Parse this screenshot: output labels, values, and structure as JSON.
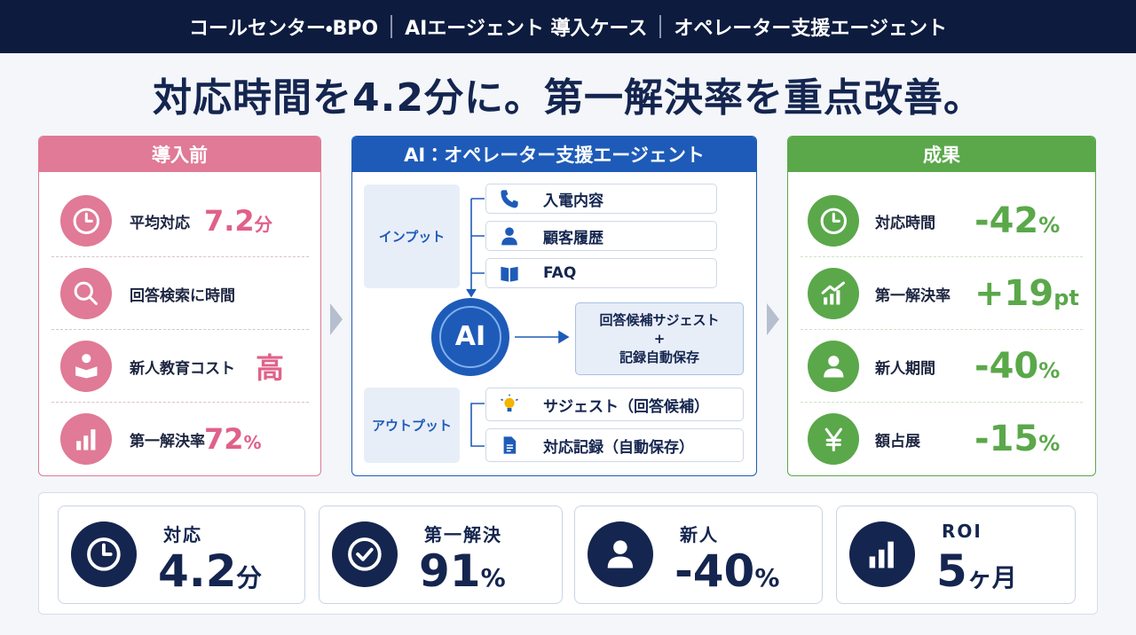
{
  "header": {
    "segments": [
      "コールセンター・BPO",
      "AIエージェント 導入ケース",
      "オペレーター支援エージェント"
    ]
  },
  "title": "対応時間を4.2分に。第一解決率を重点改善。",
  "before": {
    "heading": "導入前",
    "items": [
      {
        "label": "平均対応",
        "value": "7.2",
        "unit": "分"
      },
      {
        "label": "回答検索に時間"
      },
      {
        "label": "新人教育コスト",
        "value": "高"
      },
      {
        "label": "第一解決率",
        "value": "72",
        "unit": "%"
      }
    ]
  },
  "agent": {
    "heading": "AI：オペレーター支援エージェント",
    "input": {
      "label": "インプット",
      "items": [
        "入電内容",
        "顧客履歴",
        "FAQ"
      ]
    },
    "core": "AI",
    "result": [
      "回答候補サジェスト",
      "+",
      "記録自動保存"
    ],
    "output": {
      "label": "アウトプット",
      "items": [
        "サジェスト（回答候補）",
        "対応記録（自動保存）"
      ]
    }
  },
  "after": {
    "heading": "成果",
    "items": [
      {
        "label": "対応時間",
        "value": "-42",
        "unit": "%"
      },
      {
        "label": "第一解決率",
        "value": "+19",
        "unit": "pt"
      },
      {
        "label": "新人期間",
        "value": "-40",
        "unit": "%"
      },
      {
        "label": "額占展",
        "value": "-15",
        "unit": "%"
      }
    ]
  },
  "kpis": [
    {
      "label": "対応",
      "value": "4.2",
      "unit": "分"
    },
    {
      "label": "第一解決",
      "value": "91",
      "unit": "%"
    },
    {
      "label": "新人",
      "value": "-40",
      "unit": "%"
    },
    {
      "label": "ROI",
      "value": "5",
      "unit": "ヶ月"
    }
  ]
}
